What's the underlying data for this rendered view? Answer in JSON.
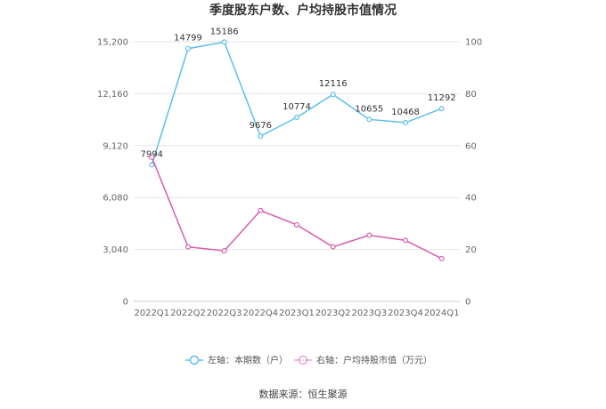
{
  "chart_data": {
    "type": "line",
    "title": "季度股东户数、户均持股市值情况",
    "categories": [
      "2022Q1",
      "2022Q2",
      "2022Q3",
      "2022Q4",
      "2023Q1",
      "2023Q2",
      "2023Q3",
      "2023Q4",
      "2024Q1"
    ],
    "left_axis": {
      "ticks": [
        "0",
        "3,040",
        "6,080",
        "9,120",
        "12,160",
        "15,200"
      ],
      "ylim": [
        0,
        15200
      ]
    },
    "right_axis": {
      "ticks": [
        "0",
        "20",
        "40",
        "60",
        "80",
        "100"
      ],
      "ylim": [
        0,
        100
      ]
    },
    "series": [
      {
        "name": "左轴：本期数（户）",
        "axis": "left",
        "color": "#5bc0eb",
        "values": [
          7994,
          14799,
          15186,
          9676,
          10774,
          12116,
          10655,
          10468,
          11292
        ],
        "labels": [
          "7994",
          "14799",
          "15186",
          "9676",
          "10774",
          "12116",
          "10655",
          "10468",
          "11292"
        ]
      },
      {
        "name": "右轴：户均持股市值（万元）",
        "axis": "right",
        "color": "#d65fae",
        "values": [
          55.5,
          21.0,
          19.5,
          35.0,
          29.5,
          21.0,
          25.5,
          23.5,
          16.5
        ]
      }
    ],
    "grid": true,
    "legend": "bottom"
  },
  "source": "数据来源：恒生聚源"
}
